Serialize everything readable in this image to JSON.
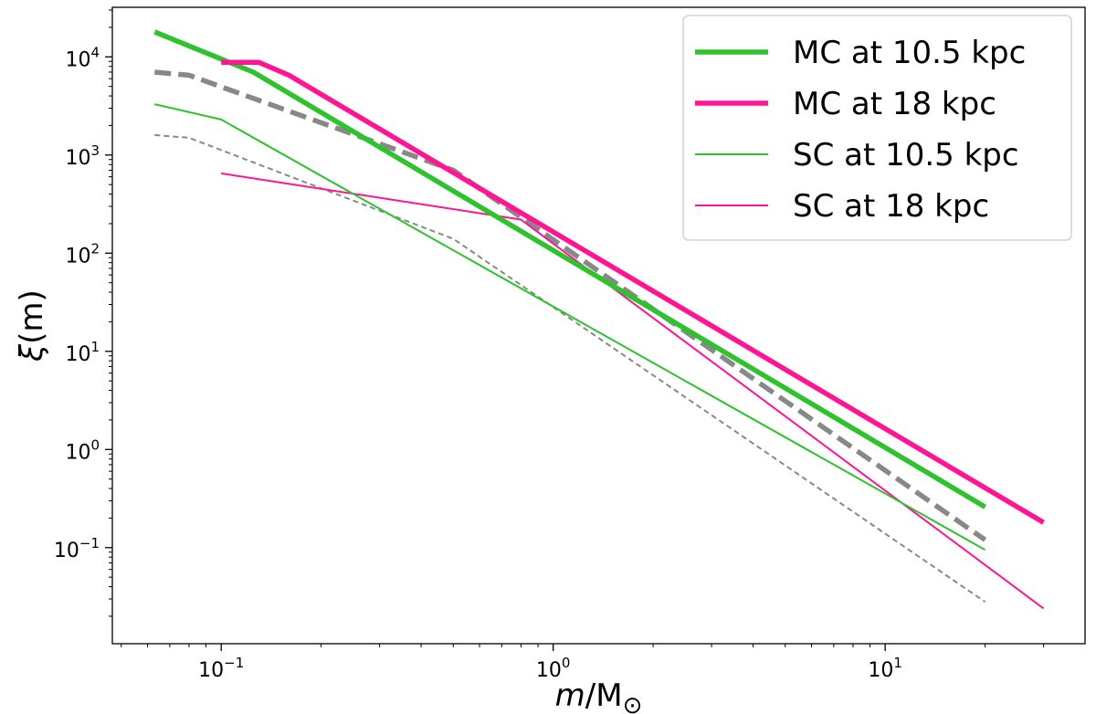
{
  "chart_data": {
    "type": "line",
    "xscale": "log",
    "yscale": "log",
    "xlim": [
      0.047,
      40
    ],
    "ylim": [
      0.0105,
      32000
    ],
    "xlabel": {
      "var": "m",
      "sep": "/M",
      "sub": "⊙"
    },
    "ylabel": {
      "var": "ξ",
      "rest": "(m)"
    },
    "x_ticks": [
      {
        "value": 0.1,
        "base": "10",
        "exp": "−1"
      },
      {
        "value": 1,
        "base": "10",
        "exp": "0"
      },
      {
        "value": 10,
        "base": "10",
        "exp": "1"
      }
    ],
    "y_ticks": [
      {
        "value": 0.1,
        "base": "10",
        "exp": "−1"
      },
      {
        "value": 1,
        "base": "10",
        "exp": "0"
      },
      {
        "value": 10,
        "base": "10",
        "exp": "1"
      },
      {
        "value": 100,
        "base": "10",
        "exp": "2"
      },
      {
        "value": 1000,
        "base": "10",
        "exp": "3"
      },
      {
        "value": 10000,
        "base": "10",
        "exp": "4"
      }
    ],
    "legend_position": "top-right",
    "grid": false,
    "series": [
      {
        "name": "MC at 10.5 kpc",
        "color": "#2ec22e",
        "width": "thick",
        "dash": "solid",
        "in_legend": true,
        "x": [
          0.063,
          0.125,
          20
        ],
        "y": [
          18000,
          7000,
          0.26
        ]
      },
      {
        "name": "MC at 18 kpc",
        "color": "#ff1493",
        "width": "thick",
        "dash": "solid",
        "in_legend": true,
        "x": [
          0.1,
          0.13,
          0.16,
          30
        ],
        "y": [
          8800,
          8800,
          6500,
          0.18
        ]
      },
      {
        "name": "SC at 10.5 kpc",
        "color": "#2ec22e",
        "width": "thin",
        "dash": "solid",
        "in_legend": true,
        "x": [
          0.063,
          0.1,
          20
        ],
        "y": [
          3300,
          2300,
          0.095
        ]
      },
      {
        "name": "SC at 18 kpc",
        "color": "#ff1493",
        "width": "thin",
        "dash": "solid",
        "in_legend": true,
        "x": [
          0.1,
          0.8,
          30
        ],
        "y": [
          650,
          220,
          0.024
        ]
      },
      {
        "name": "",
        "color": "#888888",
        "width": "thick",
        "dash": "dashed",
        "in_legend": false,
        "x": [
          0.063,
          0.08,
          0.5,
          20
        ],
        "y": [
          7000,
          6500,
          700,
          0.12
        ]
      },
      {
        "name": "",
        "color": "#888888",
        "width": "thin",
        "dash": "dashed",
        "in_legend": false,
        "x": [
          0.063,
          0.08,
          0.5,
          20
        ],
        "y": [
          1600,
          1500,
          140,
          0.028
        ]
      }
    ]
  }
}
